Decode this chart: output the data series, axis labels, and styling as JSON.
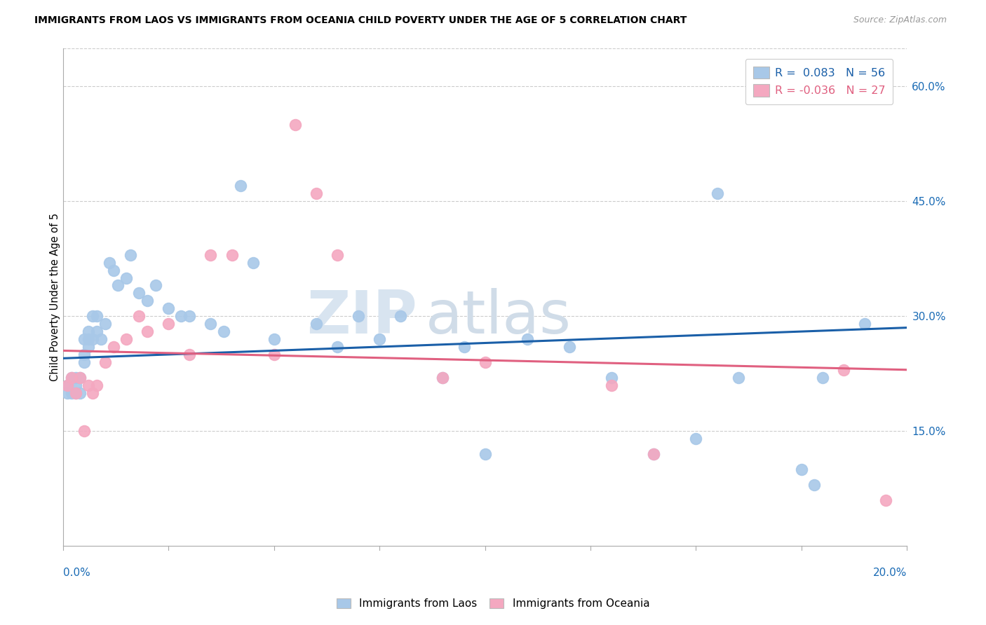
{
  "title": "IMMIGRANTS FROM LAOS VS IMMIGRANTS FROM OCEANIA CHILD POVERTY UNDER THE AGE OF 5 CORRELATION CHART",
  "source": "Source: ZipAtlas.com",
  "ylabel": "Child Poverty Under the Age of 5",
  "ytick_labels": [
    "15.0%",
    "30.0%",
    "45.0%",
    "60.0%"
  ],
  "ytick_values": [
    0.15,
    0.3,
    0.45,
    0.6
  ],
  "xmin": 0.0,
  "xmax": 0.2,
  "ymin": 0.0,
  "ymax": 0.65,
  "watermark_zip": "ZIP",
  "watermark_atlas": "atlas",
  "color_laos": "#a8c8e8",
  "color_oceania": "#f4a8c0",
  "line_color_laos": "#1a5fa8",
  "line_color_oceania": "#e06080",
  "laos_x": [
    0.001,
    0.001,
    0.002,
    0.002,
    0.003,
    0.003,
    0.003,
    0.004,
    0.004,
    0.005,
    0.005,
    0.005,
    0.006,
    0.006,
    0.006,
    0.007,
    0.007,
    0.008,
    0.008,
    0.009,
    0.01,
    0.011,
    0.012,
    0.013,
    0.015,
    0.016,
    0.018,
    0.02,
    0.022,
    0.025,
    0.028,
    0.03,
    0.035,
    0.038,
    0.042,
    0.045,
    0.05,
    0.06,
    0.065,
    0.07,
    0.075,
    0.08,
    0.09,
    0.095,
    0.1,
    0.11,
    0.12,
    0.13,
    0.14,
    0.15,
    0.155,
    0.16,
    0.175,
    0.178,
    0.18,
    0.19
  ],
  "laos_y": [
    0.21,
    0.2,
    0.22,
    0.2,
    0.22,
    0.21,
    0.2,
    0.22,
    0.2,
    0.25,
    0.27,
    0.24,
    0.27,
    0.26,
    0.28,
    0.3,
    0.27,
    0.3,
    0.28,
    0.27,
    0.29,
    0.37,
    0.36,
    0.34,
    0.35,
    0.38,
    0.33,
    0.32,
    0.34,
    0.31,
    0.3,
    0.3,
    0.29,
    0.28,
    0.47,
    0.37,
    0.27,
    0.29,
    0.26,
    0.3,
    0.27,
    0.3,
    0.22,
    0.26,
    0.12,
    0.27,
    0.26,
    0.22,
    0.12,
    0.14,
    0.46,
    0.22,
    0.1,
    0.08,
    0.22,
    0.29
  ],
  "oceania_x": [
    0.001,
    0.002,
    0.003,
    0.004,
    0.005,
    0.006,
    0.007,
    0.008,
    0.01,
    0.012,
    0.015,
    0.018,
    0.02,
    0.025,
    0.03,
    0.035,
    0.04,
    0.05,
    0.055,
    0.06,
    0.065,
    0.09,
    0.1,
    0.13,
    0.14,
    0.185,
    0.195
  ],
  "oceania_y": [
    0.21,
    0.22,
    0.2,
    0.22,
    0.15,
    0.21,
    0.2,
    0.21,
    0.24,
    0.26,
    0.27,
    0.3,
    0.28,
    0.29,
    0.25,
    0.38,
    0.38,
    0.25,
    0.55,
    0.46,
    0.38,
    0.22,
    0.24,
    0.21,
    0.12,
    0.23,
    0.06
  ]
}
